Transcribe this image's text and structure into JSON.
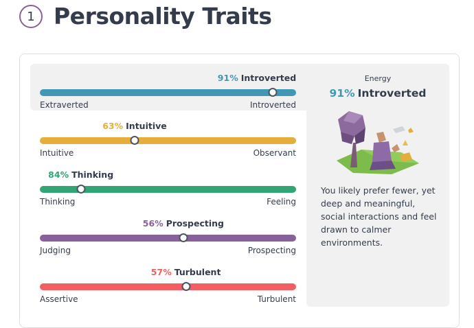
{
  "header": {
    "step_number": "1",
    "title": "Personality Traits"
  },
  "traits": [
    {
      "percent": "91%",
      "name": "Introverted",
      "left_label": "Extraverted",
      "right_label": "Introverted",
      "value": 0.91,
      "knob_fraction": 0.91,
      "color": "#4298b4",
      "selected": true
    },
    {
      "percent": "63%",
      "name": "Intuitive",
      "left_label": "Intuitive",
      "right_label": "Observant",
      "value": 0.63,
      "knob_fraction": 0.37,
      "color": "#e4ae3a",
      "selected": false
    },
    {
      "percent": "84%",
      "name": "Thinking",
      "left_label": "Thinking",
      "right_label": "Feeling",
      "value": 0.84,
      "knob_fraction": 0.16,
      "color": "#33a474",
      "selected": false
    },
    {
      "percent": "56%",
      "name": "Prospecting",
      "left_label": "Judging",
      "right_label": "Prospecting",
      "value": 0.56,
      "knob_fraction": 0.56,
      "color": "#88619a",
      "selected": false
    },
    {
      "percent": "57%",
      "name": "Turbulent",
      "left_label": "Assertive",
      "right_label": "Turbulent",
      "value": 0.57,
      "knob_fraction": 0.57,
      "color": "#f25e62",
      "selected": false
    }
  ],
  "panel": {
    "label": "Energy",
    "percent": "91%",
    "trait": "Introverted",
    "illustration": "introvert-reading-under-tree-illustration",
    "description": "You likely prefer fewer, yet deep and meaningful, social interactions and feel drawn to calmer environments."
  }
}
